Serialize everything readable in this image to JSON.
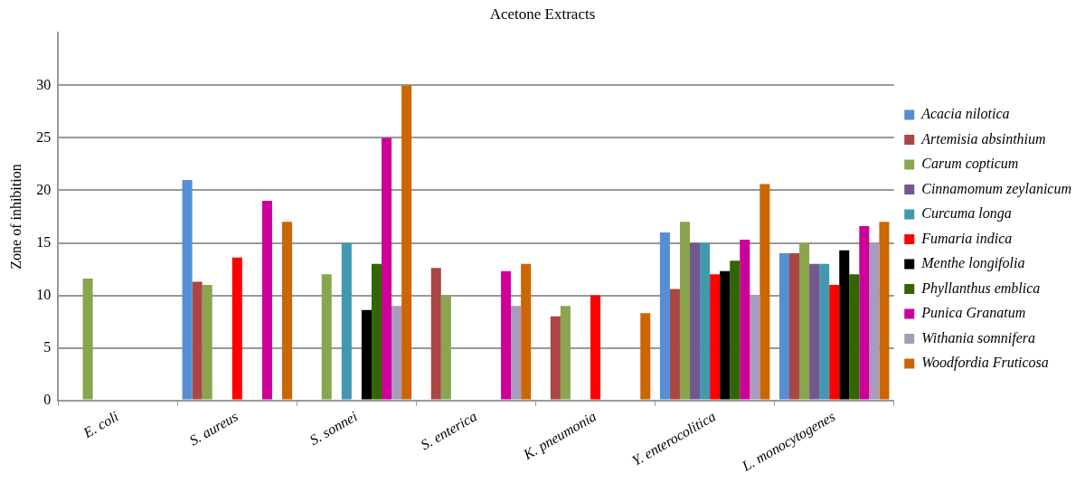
{
  "chart_data": {
    "type": "bar",
    "title": "Acetone Extracts",
    "ylabel": "Zone of inhibition",
    "categories": [
      "E. coli",
      "S. aureus",
      "S. sonnei",
      "S. enterica",
      "K. pneumonia",
      "Y. enterocolitica",
      "L. monocytogenes"
    ],
    "series": [
      {
        "name": "Acacia nilotica",
        "color": "#558ed5",
        "values": [
          null,
          21,
          null,
          null,
          null,
          16,
          14
        ]
      },
      {
        "name": "Artemisia absinthium",
        "color": "#aa4643",
        "values": [
          null,
          11.3,
          null,
          12.6,
          8,
          10.6,
          14
        ]
      },
      {
        "name": "Carum copticum",
        "color": "#89a54e",
        "values": [
          11.6,
          11,
          12,
          10,
          9,
          17,
          15
        ]
      },
      {
        "name": "Cinnamomum zeylanicum",
        "color": "#71588f",
        "values": [
          null,
          null,
          null,
          null,
          null,
          15,
          13
        ]
      },
      {
        "name": "Curcuma longa",
        "color": "#4198af",
        "values": [
          null,
          null,
          15,
          null,
          null,
          15,
          13
        ]
      },
      {
        "name": "Fumaria indica",
        "color": "#ff0000",
        "values": [
          null,
          13.6,
          null,
          null,
          10,
          12,
          11
        ]
      },
      {
        "name": "Menthe longifolia",
        "color": "#000000",
        "values": [
          null,
          null,
          8.6,
          null,
          null,
          12.3,
          14.3
        ]
      },
      {
        "name": "Phyllanthus emblica",
        "color": "#336600",
        "values": [
          null,
          null,
          13,
          null,
          null,
          13.3,
          12
        ]
      },
      {
        "name": "Punica Granatum",
        "color": "#cc0099",
        "values": [
          null,
          19,
          25,
          12.3,
          null,
          15.3,
          16.6
        ]
      },
      {
        "name": "Withania somnifera",
        "color": "#a99bbd",
        "values": [
          null,
          null,
          9,
          9,
          null,
          10,
          15
        ]
      },
      {
        "name": "Woodfordia Fruticosa",
        "color": "#cc6600",
        "values": [
          null,
          17,
          30,
          13,
          8.3,
          20.6,
          17
        ]
      }
    ],
    "ylim": [
      0,
      35
    ],
    "yticks": [
      0,
      5,
      10,
      15,
      20,
      25,
      30
    ],
    "grid": "y",
    "legend": "right"
  }
}
